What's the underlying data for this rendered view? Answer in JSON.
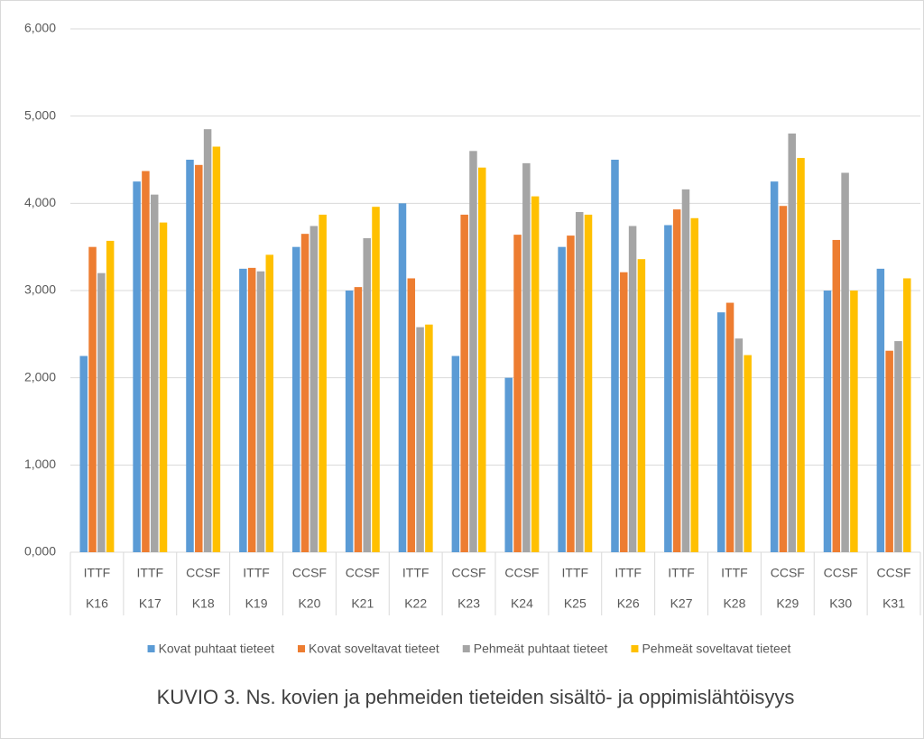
{
  "chart_data": {
    "type": "bar",
    "title": "KUVIO 3. Ns. kovien ja pehmeiden tieteiden sisältö- ja oppimislähtöisyys",
    "categories": [
      "K16",
      "K17",
      "K18",
      "K19",
      "K20",
      "K21",
      "K22",
      "K23",
      "K24",
      "K25",
      "K26",
      "K27",
      "K28",
      "K29",
      "K30",
      "K31"
    ],
    "category_groups": [
      "ITTF",
      "ITTF",
      "CCSF",
      "ITTF",
      "CCSF",
      "CCSF",
      "ITTF",
      "CCSF",
      "CCSF",
      "ITTF",
      "ITTF",
      "ITTF",
      "ITTF",
      "CCSF",
      "CCSF",
      "CCSF"
    ],
    "series": [
      {
        "name": "Kovat puhtaat tieteet",
        "color": "#5b9bd5",
        "values": [
          2.25,
          4.25,
          4.5,
          3.25,
          3.5,
          3.0,
          4.0,
          2.25,
          2.0,
          3.5,
          4.5,
          3.75,
          2.75,
          4.25,
          3.0,
          3.25
        ]
      },
      {
        "name": "Kovat soveltavat tieteet",
        "color": "#ed7d31",
        "values": [
          3.5,
          4.37,
          4.44,
          3.26,
          3.65,
          3.04,
          3.14,
          3.87,
          3.64,
          3.63,
          3.21,
          3.93,
          2.86,
          3.97,
          3.58,
          2.31
        ]
      },
      {
        "name": "Pehmeät puhtaat tieteet",
        "color": "#a5a5a5",
        "values": [
          3.2,
          4.1,
          4.85,
          3.22,
          3.74,
          3.6,
          2.58,
          4.6,
          4.46,
          3.9,
          3.74,
          4.16,
          2.45,
          4.8,
          4.35,
          2.42
        ]
      },
      {
        "name": "Pehmeät soveltavat tieteet",
        "color": "#ffc000",
        "values": [
          3.57,
          3.78,
          4.65,
          3.41,
          3.87,
          3.96,
          2.61,
          4.41,
          4.08,
          3.87,
          3.36,
          3.83,
          2.26,
          4.52,
          3.0,
          3.14
        ]
      }
    ],
    "ylim": [
      0,
      6
    ],
    "yticks": [
      {
        "value": 0,
        "label": "0,000"
      },
      {
        "value": 1,
        "label": "1,000"
      },
      {
        "value": 2,
        "label": "2,000"
      },
      {
        "value": 3,
        "label": "3,000"
      },
      {
        "value": 4,
        "label": "4,000"
      },
      {
        "value": 5,
        "label": "5,000"
      },
      {
        "value": 6,
        "label": "6,000"
      }
    ],
    "grid": true,
    "legend": "bottom"
  }
}
